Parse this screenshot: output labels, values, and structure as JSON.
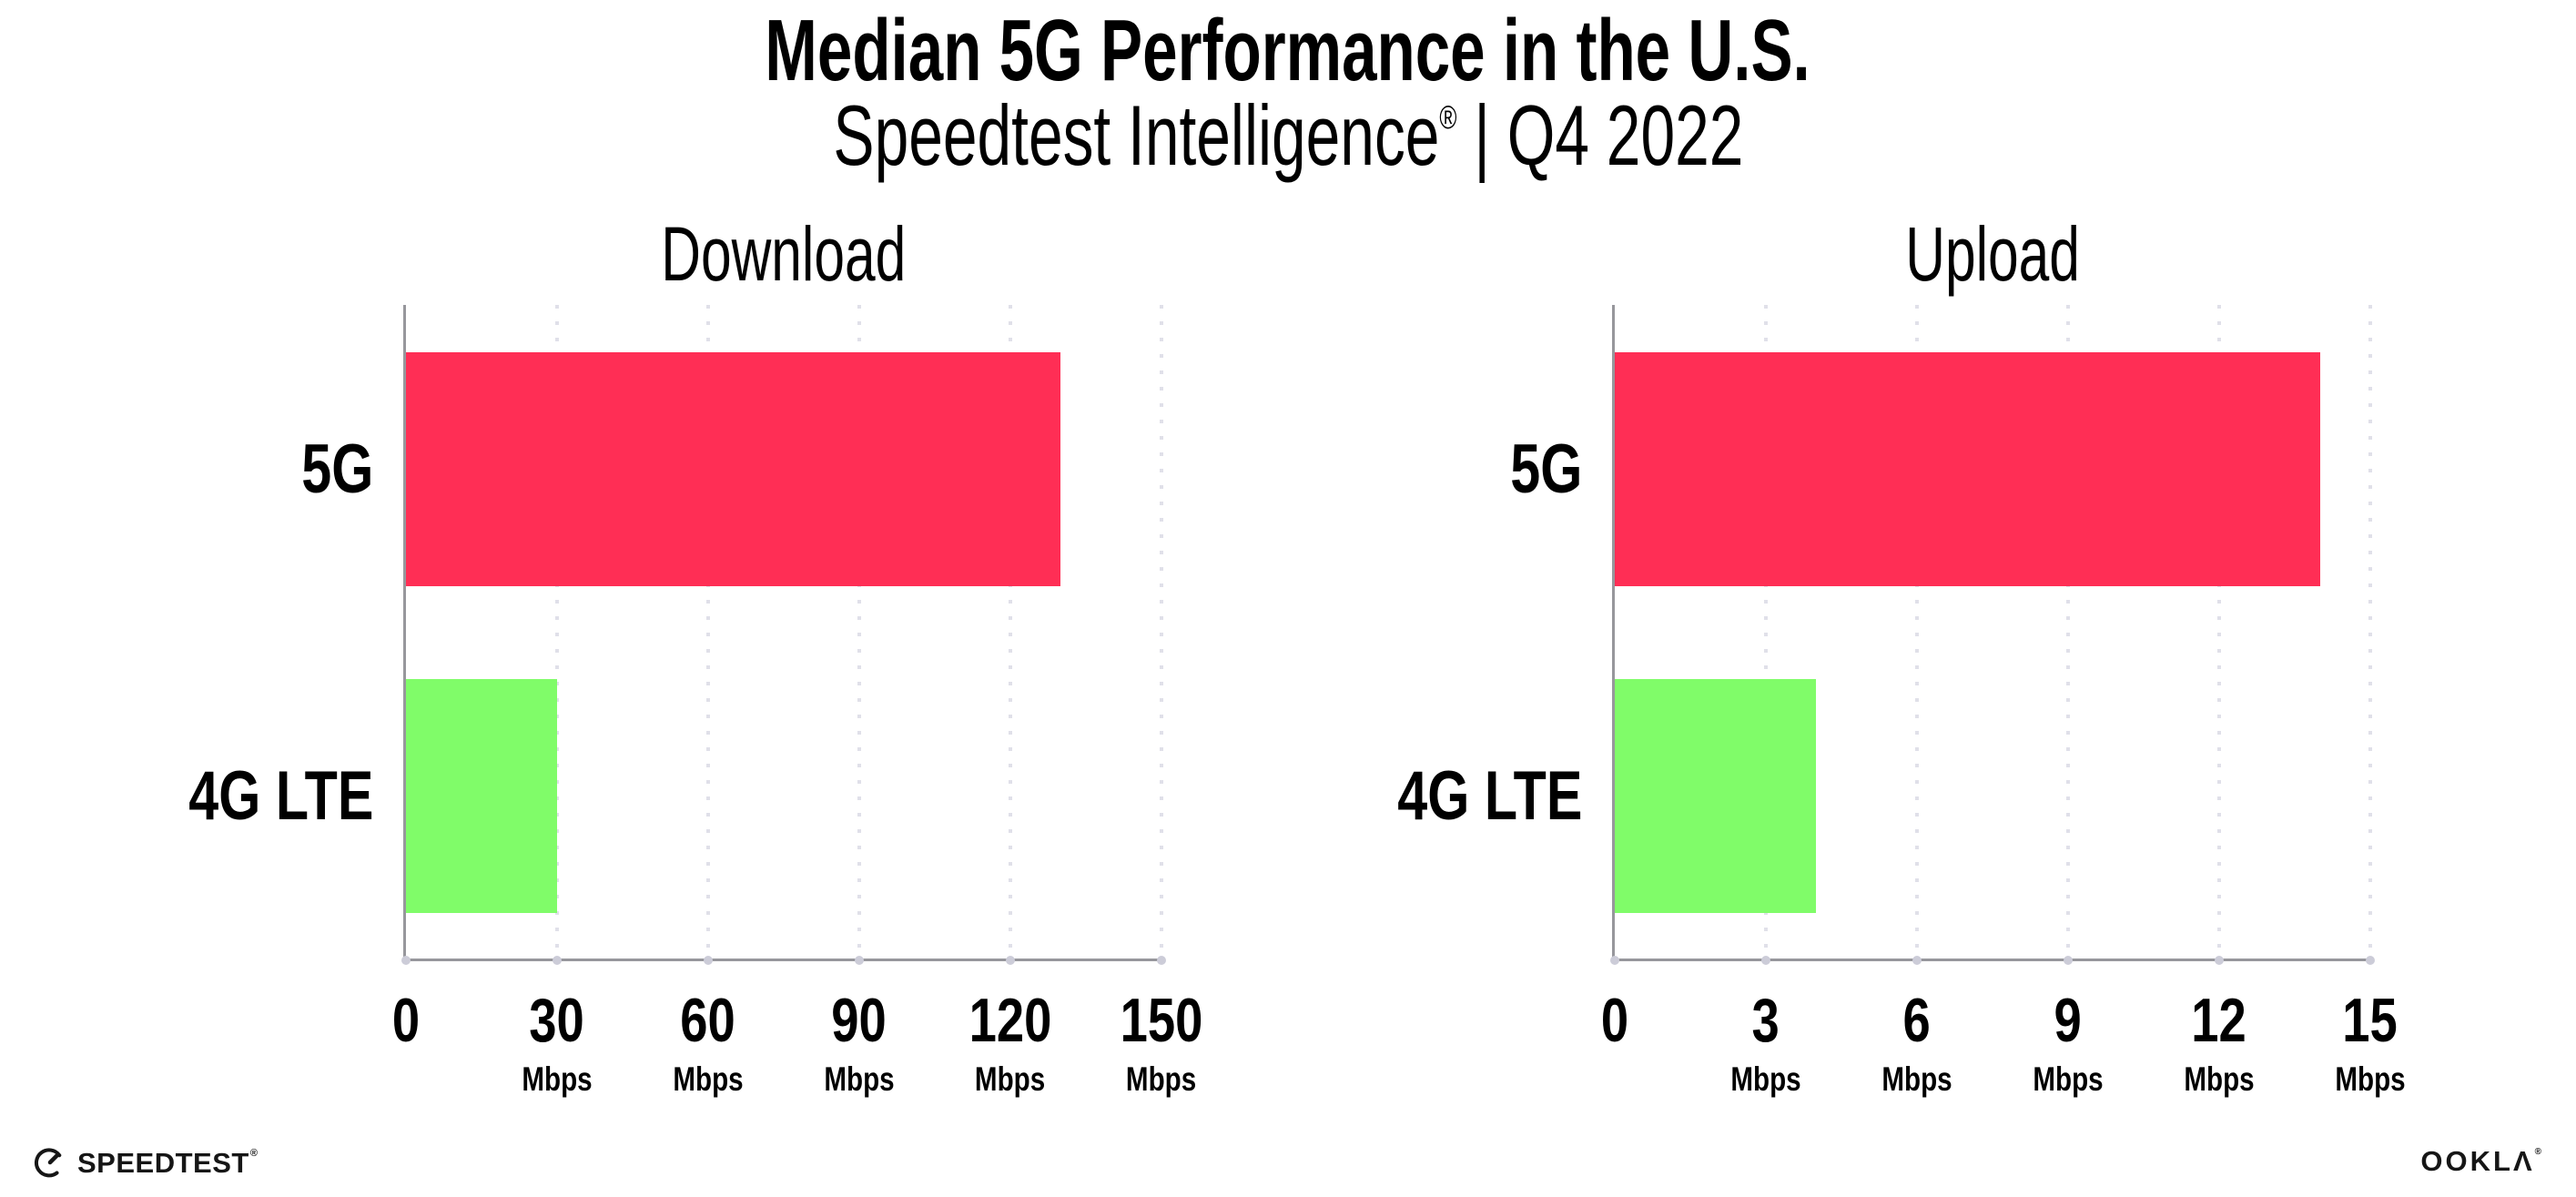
{
  "header": {
    "title": "Median 5G Performance in the U.S.",
    "subtitle_brand": "Speedtest Intelligence",
    "subtitle_reg": "®",
    "subtitle_rest": " | Q4 2022"
  },
  "chart_data": [
    {
      "type": "bar",
      "orientation": "horizontal",
      "title": "Download",
      "categories": [
        "5G",
        "4G LTE"
      ],
      "values": [
        130,
        30
      ],
      "unit": "Mbps",
      "xlim": [
        0,
        150
      ],
      "xticks": [
        0,
        30,
        60,
        90,
        120,
        150
      ],
      "bar_colors": [
        "#FF2E55",
        "#80FC69"
      ],
      "grid": "vertical-dotted",
      "legend": "none"
    },
    {
      "type": "bar",
      "orientation": "horizontal",
      "title": "Upload",
      "categories": [
        "5G",
        "4G LTE"
      ],
      "values": [
        14,
        4
      ],
      "unit": "Mbps",
      "xlim": [
        0,
        15
      ],
      "xticks": [
        0,
        3,
        6,
        9,
        12,
        15
      ],
      "bar_colors": [
        "#FF2E55",
        "#80FC69"
      ],
      "grid": "vertical-dotted",
      "legend": "none"
    }
  ],
  "footer": {
    "speedtest_text": "SPEEDTEST",
    "speedtest_reg": "®",
    "ookla_display": "OOKLΛ",
    "ookla_reg": "®"
  },
  "colors": {
    "bar_5g": "#FF2E55",
    "bar_4g_lte": "#80FC69",
    "axis": "#97979c",
    "grid_dot": "#e0e0e9",
    "text": "#000000",
    "background": "#ffffff"
  }
}
